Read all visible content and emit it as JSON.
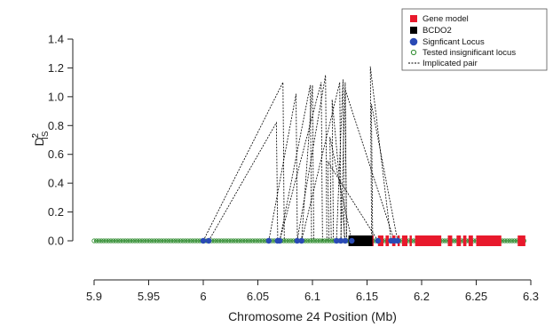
{
  "chart_data": {
    "type": "scatter",
    "xlabel": "Chromosome 24 Position (Mb)",
    "ylabel": {
      "main": "D",
      "sup": "2",
      "sub": "IS",
      "prime": "'"
    },
    "xlim": [
      5.9,
      6.3
    ],
    "ylim": [
      0,
      1.4
    ],
    "x_ticks": [
      "5.9",
      "5.95",
      "6",
      "6.05",
      "6.1",
      "6.15",
      "6.2",
      "6.25",
      "6.3"
    ],
    "y_ticks": [
      "0.0",
      "0.2",
      "0.4",
      "0.6",
      "0.8",
      "1.0",
      "1.2",
      "1.4"
    ],
    "legend": {
      "position": "top-right",
      "items": [
        {
          "key": "gene",
          "label": "Gene model"
        },
        {
          "key": "bcdo2",
          "label": "BCDO2"
        },
        {
          "key": "sig",
          "label": "Signficant Locus"
        },
        {
          "key": "insig",
          "label": "Tested insignificant locus"
        },
        {
          "key": "pair",
          "label": "Implicated pair"
        }
      ]
    },
    "colors": {
      "gene": "#e8192c",
      "bcdo2": "#000000",
      "sig": "#2a4ab5",
      "insig": "#2e8b2e",
      "pair": "#000000"
    },
    "gene_models": [
      [
        6.142,
        6.145
      ],
      [
        6.148,
        6.151
      ],
      [
        6.154,
        6.156
      ],
      [
        6.16,
        6.165
      ],
      [
        6.167,
        6.17
      ],
      [
        6.173,
        6.176
      ],
      [
        6.178,
        6.18
      ],
      [
        6.182,
        6.187
      ],
      [
        6.189,
        6.191
      ],
      [
        6.194,
        6.218
      ],
      [
        6.224,
        6.228
      ],
      [
        6.232,
        6.236
      ],
      [
        6.238,
        6.241
      ],
      [
        6.243,
        6.247
      ],
      [
        6.25,
        6.273
      ],
      [
        6.288,
        6.295
      ]
    ],
    "bcdo2": [
      6.133,
      6.155
    ],
    "tested_insignificant_range": [
      5.9,
      6.295
    ],
    "significant_loci": [
      6.0,
      6.005,
      6.06,
      6.068,
      6.07,
      6.086,
      6.09,
      6.122,
      6.126,
      6.13,
      6.136,
      6.16,
      6.172,
      6.175,
      6.178
    ],
    "implicated_pairs": [
      {
        "x1": 6.0,
        "x2": 6.073,
        "peak": 1.1
      },
      {
        "x1": 6.005,
        "x2": 6.067,
        "peak": 0.82
      },
      {
        "x1": 6.06,
        "x2": 6.085,
        "peak": 1.02
      },
      {
        "x1": 6.07,
        "x2": 6.098,
        "peak": 1.08
      },
      {
        "x1": 6.07,
        "x2": 6.108,
        "peak": 1.1
      },
      {
        "x1": 6.086,
        "x2": 6.112,
        "peak": 1.15
      },
      {
        "x1": 6.09,
        "x2": 6.1,
        "peak": 1.08
      },
      {
        "x1": 6.09,
        "x2": 6.125,
        "peak": 1.1
      },
      {
        "x1": 6.122,
        "x2": 6.128,
        "peak": 1.12
      },
      {
        "x1": 6.126,
        "x2": 6.13,
        "peak": 1.1
      },
      {
        "x1": 6.13,
        "x2": 6.118,
        "peak": 0.98
      },
      {
        "x1": 6.136,
        "x2": 6.116,
        "peak": 0.72
      },
      {
        "x1": 6.16,
        "x2": 6.114,
        "peak": 0.55
      },
      {
        "x1": 6.172,
        "x2": 6.153,
        "peak": 1.21
      },
      {
        "x1": 6.175,
        "x2": 6.13,
        "peak": 1.05
      },
      {
        "x1": 6.178,
        "x2": 6.154,
        "peak": 0.95
      }
    ]
  }
}
